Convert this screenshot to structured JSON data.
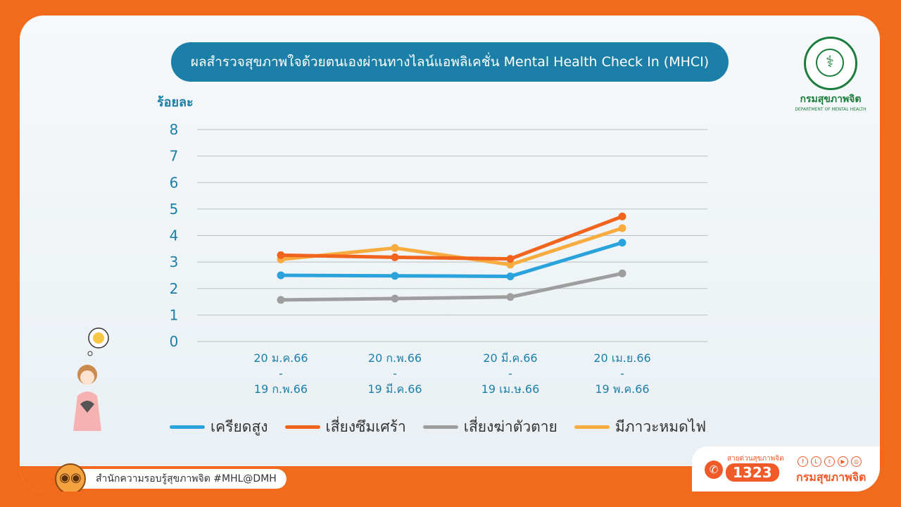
{
  "header": {
    "title": "ผลสำรวจสุขภาพใจด้วยตนเองผ่านทางไลน์แอพลิเคชั่น Mental Health Check In (MHCI)"
  },
  "logo": {
    "name": "กรมสุขภาพจิต",
    "subtitle": "DEPARTMENT OF MENTAL HEALTH",
    "emblem_text": "MINISTRY OF PUBLIC HEALTH"
  },
  "chart_data": {
    "type": "line",
    "ylabel": "ร้อยละ",
    "ylim": [
      0,
      8
    ],
    "yticks": [
      "0",
      "1",
      "2",
      "3",
      "4",
      "5",
      "6",
      "7",
      "8"
    ],
    "grid": true,
    "legend_position": "bottom",
    "categories": [
      [
        "20 ม.ค.66",
        "-",
        "19 ก.พ.66"
      ],
      [
        "20 ก.พ.66",
        "-",
        "19 มี.ค.66"
      ],
      [
        "20 มี.ค.66",
        "-",
        "19 เม.ษ.66"
      ],
      [
        "20 เม.ย.66",
        "-",
        "19 พ.ค.66"
      ]
    ],
    "series": [
      {
        "name": "เครียดสูง",
        "color": "#2aa3dc",
        "values": [
          2.5,
          2.48,
          2.46,
          3.73
        ]
      },
      {
        "name": "เสี่ยงซึมเศร้า",
        "color": "#f0641e",
        "values": [
          3.26,
          3.18,
          3.12,
          4.72
        ]
      },
      {
        "name": "เสี่ยงฆ่าตัวตาย",
        "color": "#9e9e9e",
        "values": [
          1.57,
          1.62,
          1.68,
          2.57
        ]
      },
      {
        "name": "มีภาวะหมดไฟ",
        "color": "#f8ac3f",
        "values": [
          3.1,
          3.53,
          2.9,
          4.28
        ]
      }
    ]
  },
  "footer": {
    "office": "สำนักความรอบรู้สุขภาพจิต  #MHL@DMH",
    "hotline_label": "สายด่วนสุขภาพจิต",
    "hotline_number": "1323",
    "dept": "กรมสุขภาพจิต"
  }
}
